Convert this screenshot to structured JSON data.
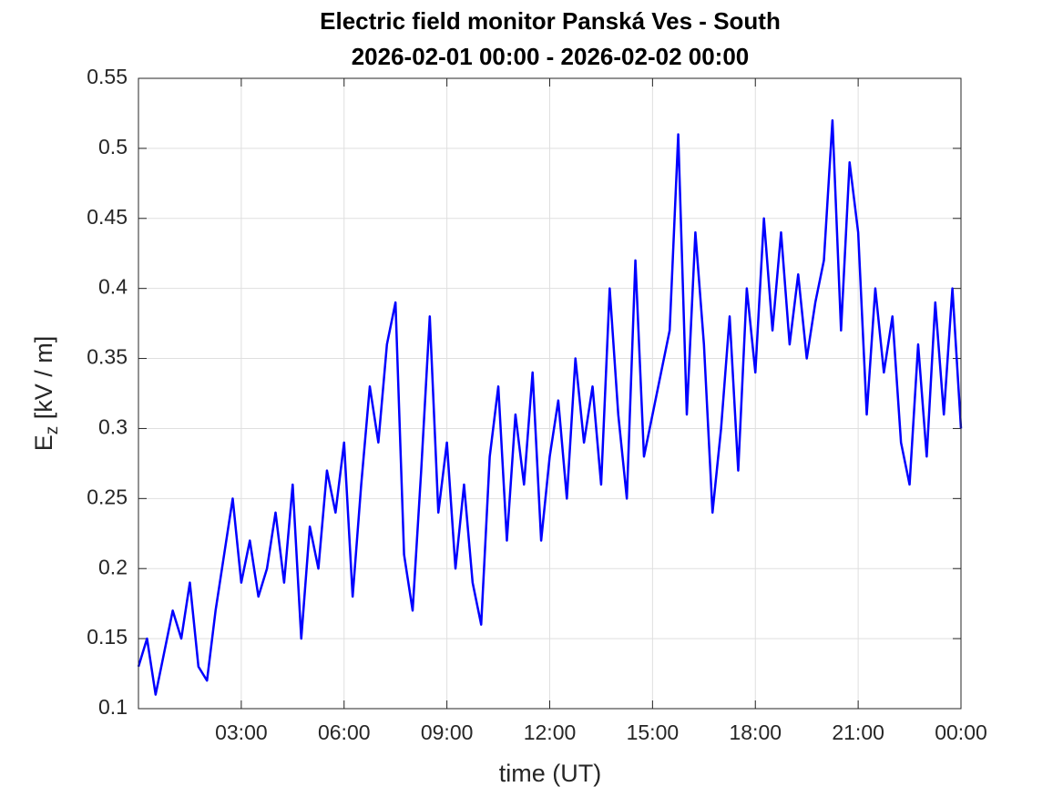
{
  "chart_data": {
    "type": "line",
    "title": "Electric field monitor Panská Ves - South",
    "subtitle": "2026-02-01 00:00 - 2026-02-02 00:00",
    "xlabel": "time (UT)",
    "ylabel": [
      "E",
      "z",
      " [kV / m]"
    ],
    "x": [
      0,
      0.25,
      0.5,
      0.75,
      1,
      1.25,
      1.5,
      1.75,
      2,
      2.25,
      2.5,
      2.75,
      3,
      3.25,
      3.5,
      3.75,
      4,
      4.25,
      4.5,
      4.75,
      5,
      5.25,
      5.5,
      5.75,
      6,
      6.25,
      6.5,
      6.75,
      7,
      7.25,
      7.5,
      7.75,
      8,
      8.25,
      8.5,
      8.75,
      9,
      9.25,
      9.5,
      9.75,
      10,
      10.25,
      10.5,
      10.75,
      11,
      11.25,
      11.5,
      11.75,
      12,
      12.25,
      12.5,
      12.75,
      13,
      13.25,
      13.5,
      13.75,
      14,
      14.25,
      14.5,
      14.75,
      15,
      15.25,
      15.5,
      15.75,
      16,
      16.25,
      16.5,
      16.75,
      17,
      17.25,
      17.5,
      17.75,
      18,
      18.25,
      18.5,
      18.75,
      19,
      19.25,
      19.5,
      19.75,
      20,
      20.25,
      20.5,
      20.75,
      21,
      21.25,
      21.5,
      21.75,
      22,
      22.25,
      22.5,
      22.75,
      23,
      23.25,
      23.5,
      23.75,
      24
    ],
    "series": [
      {
        "color": "#0000ff",
        "values": [
          0.13,
          0.15,
          0.11,
          0.14,
          0.17,
          0.15,
          0.19,
          0.13,
          0.12,
          0.17,
          0.21,
          0.25,
          0.19,
          0.22,
          0.18,
          0.2,
          0.24,
          0.19,
          0.26,
          0.15,
          0.23,
          0.2,
          0.27,
          0.24,
          0.29,
          0.18,
          0.26,
          0.33,
          0.29,
          0.36,
          0.39,
          0.21,
          0.17,
          0.27,
          0.38,
          0.24,
          0.29,
          0.2,
          0.26,
          0.19,
          0.16,
          0.28,
          0.33,
          0.22,
          0.31,
          0.26,
          0.34,
          0.22,
          0.28,
          0.32,
          0.25,
          0.35,
          0.29,
          0.33,
          0.26,
          0.4,
          0.31,
          0.25,
          0.42,
          0.28,
          0.31,
          0.34,
          0.37,
          0.51,
          0.31,
          0.44,
          0.36,
          0.24,
          0.3,
          0.38,
          0.27,
          0.4,
          0.34,
          0.45,
          0.37,
          0.44,
          0.36,
          0.41,
          0.35,
          0.39,
          0.42,
          0.52,
          0.37,
          0.49,
          0.44,
          0.31,
          0.4,
          0.34,
          0.38,
          0.29,
          0.26,
          0.36,
          0.28,
          0.39,
          0.31,
          0.4,
          0.3
        ]
      }
    ],
    "xlim": [
      0,
      24
    ],
    "xticks": [
      {
        "value": 3,
        "label": "03:00"
      },
      {
        "value": 6,
        "label": "06:00"
      },
      {
        "value": 9,
        "label": "09:00"
      },
      {
        "value": 12,
        "label": "12:00"
      },
      {
        "value": 15,
        "label": "15:00"
      },
      {
        "value": 18,
        "label": "18:00"
      },
      {
        "value": 21,
        "label": "21:00"
      },
      {
        "value": 24,
        "label": "00:00"
      }
    ],
    "ylim": [
      0.1,
      0.55
    ],
    "yticks": [
      0.1,
      0.15,
      0.2,
      0.25,
      0.3,
      0.35,
      0.4,
      0.45,
      0.5,
      0.55
    ],
    "grid": true
  }
}
